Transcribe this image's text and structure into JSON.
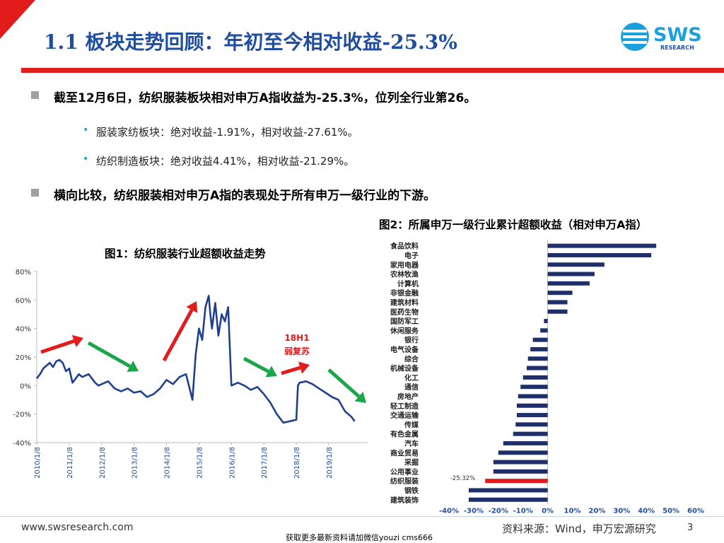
{
  "header": {
    "title": "1.1 板块走势回顾：年初至今相对收益-25.3%",
    "logo_text": "SWS",
    "logo_sub": "RESEARCH"
  },
  "bullets": [
    "截至12月6日，纺织服装板块相对申万A指收益为-25.3%，位列全行业第26。",
    "横向比较，纺织服装相对申万A指的表现处于所有申万一级行业的下游。"
  ],
  "subbullets": [
    "服装家纺板块：绝对收益-1.91%，相对收益-27.61%。",
    "纺织制造板块：绝对收益4.41%，相对收益-21.29%。"
  ],
  "footer": {
    "url": "www.swsresearch.com",
    "source": "资料来源：Wind，申万宏源研究",
    "page": "3",
    "note": "获取更多最新资料请加微信youzi cms666"
  },
  "colors": {
    "brand_blue": "#1f4e9e",
    "accent_red": "#e21b1b",
    "bar_navy": "#1f2f6b",
    "arrow_green": "#1ba64a"
  },
  "chart_data": [
    {
      "type": "line",
      "title": "图1：纺织服装行业超额收益走势",
      "yticks": [
        "80%",
        "60%",
        "40%",
        "20%",
        "0%",
        "-20%",
        "-40%"
      ],
      "ylim": [
        -40,
        80
      ],
      "xticks": [
        "2010/1/8",
        "2011/1/8",
        "2012/1/8",
        "2013/1/8",
        "2014/1/8",
        "2015/1/8",
        "2016/1/8",
        "2017/1/8",
        "2018/1/8",
        "2019/1/8"
      ],
      "annotation": "18H1\n弱复苏",
      "x": [
        0,
        0.1,
        0.2,
        0.3,
        0.4,
        0.5,
        0.6,
        0.7,
        0.8,
        0.9,
        1.0,
        1.1,
        1.2,
        1.3,
        1.4,
        1.5,
        1.6,
        1.7,
        1.8,
        1.9,
        2.0,
        2.2,
        2.4,
        2.6,
        2.8,
        3.0,
        3.2,
        3.4,
        3.6,
        3.8,
        4.0,
        4.2,
        4.4,
        4.6,
        4.8,
        4.9,
        5.0,
        5.1,
        5.2,
        5.3,
        5.35,
        5.4,
        5.5,
        5.6,
        5.7,
        5.8,
        5.9,
        6.0,
        6.1,
        6.2,
        6.4,
        6.6,
        6.8,
        7.0,
        7.2,
        7.4,
        7.6,
        7.8,
        8.0,
        8.05,
        8.1,
        8.3,
        8.5,
        8.7,
        8.9,
        9.1,
        9.3,
        9.5,
        9.7,
        9.8
      ],
      "values": [
        5,
        8,
        12,
        14,
        16,
        13,
        17,
        18,
        16,
        10,
        12,
        2,
        5,
        8,
        6,
        7,
        8,
        5,
        2,
        0,
        1,
        3,
        -2,
        -4,
        -2,
        -5,
        -4,
        -8,
        -6,
        -2,
        4,
        1,
        6,
        8,
        -10,
        22,
        40,
        32,
        55,
        63,
        50,
        40,
        58,
        35,
        50,
        45,
        55,
        0,
        1,
        2,
        0,
        -3,
        -1,
        -6,
        -12,
        -20,
        -26,
        -25,
        -24,
        0,
        2,
        3,
        1,
        -2,
        -5,
        -8,
        -10,
        -18,
        -22,
        -25
      ]
    },
    {
      "type": "bar",
      "title": "图2：所属申万一级行业累计超额收益（相对申万A指）",
      "categories": [
        "食品饮料",
        "电子",
        "家用电器",
        "农林牧渔",
        "计算机",
        "非银金融",
        "建筑材料",
        "医药生物",
        "国防军工",
        "休闲服务",
        "银行",
        "电气设备",
        "综合",
        "机械设备",
        "化工",
        "通信",
        "房地产",
        "轻工制造",
        "交通运输",
        "传媒",
        "有色金属",
        "汽车",
        "商业贸易",
        "采掘",
        "公用事业",
        "纺织服装",
        "钢铁",
        "建筑装饰"
      ],
      "values": [
        44,
        42,
        23,
        19,
        17,
        10,
        8,
        8,
        -1.5,
        -3,
        -6,
        -7,
        -8,
        -8.5,
        -10,
        -11,
        -12,
        -12.5,
        -12.5,
        -13,
        -14,
        -18,
        -20,
        -22,
        -22,
        -25.32,
        -32,
        -32
      ],
      "highlight": "纺织服装",
      "highlight_label": "-25.32%",
      "xticks": [
        "-40%",
        "-30%",
        "-20%",
        "-10%",
        "0%",
        "10%",
        "20%",
        "30%",
        "40%",
        "50%",
        "60%"
      ],
      "xlim": [
        -40,
        60
      ]
    }
  ]
}
